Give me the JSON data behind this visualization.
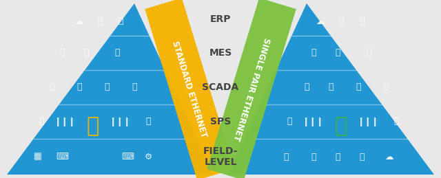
{
  "bg_color": "#e8e8e8",
  "pyramid_color": "#2196d3",
  "levels": [
    "ERP",
    "MES",
    "SCADA",
    "SPS",
    "FIELD-\nLEVEL"
  ],
  "banner_left_color": "#f5b400",
  "banner_right_color": "#7dc242",
  "banner_left_text": "STANDARD ETHERNET",
  "banner_right_text": "SINGLE PAIR ETHERNET",
  "label_fontsize": 10,
  "banner_fontsize": 8.5,
  "label_color": "#444444",
  "lock_left_color": "#f5b400",
  "lock_right_color": "#3db04b"
}
